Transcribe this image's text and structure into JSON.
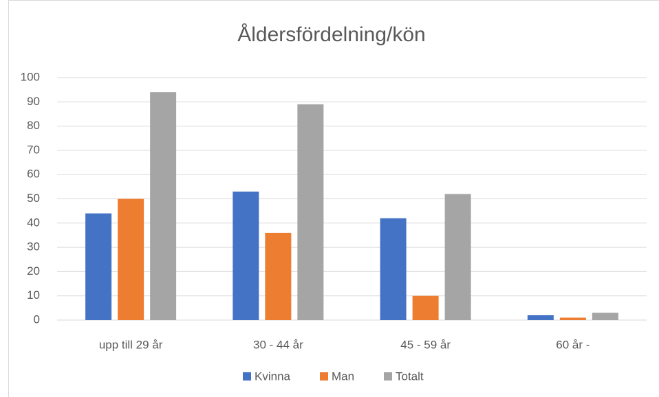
{
  "chart_data": {
    "type": "bar",
    "title": "Åldersfördelning/kön",
    "categories": [
      "upp till 29 år",
      "30 - 44 år",
      "45 - 59 år",
      "60 år -"
    ],
    "series": [
      {
        "name": "Kvinna",
        "color": "#4472c4",
        "values": [
          44,
          53,
          42,
          2
        ]
      },
      {
        "name": "Man",
        "color": "#ed7d31",
        "values": [
          50,
          36,
          10,
          1
        ]
      },
      {
        "name": "Totalt",
        "color": "#a5a5a5",
        "values": [
          94,
          89,
          52,
          3
        ]
      }
    ],
    "ylim": [
      0,
      100
    ],
    "yticks": [
      0,
      10,
      20,
      30,
      40,
      50,
      60,
      70,
      80,
      90,
      100
    ],
    "grid": true,
    "legend": "bottom"
  }
}
